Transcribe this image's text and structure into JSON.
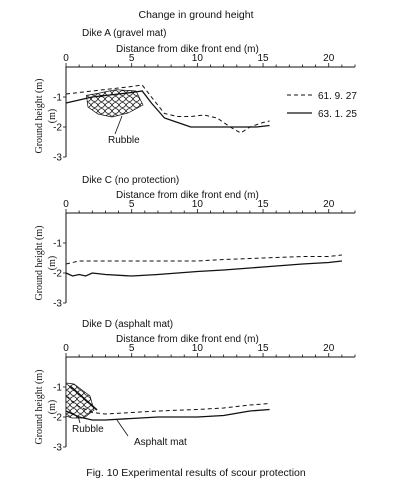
{
  "chart_data": {
    "title": "Change in ground height",
    "caption": "Fig. 10  Experimental results of scour protection",
    "panels": [
      {
        "type": "line",
        "name": "Dike A (gravel mat)",
        "xlabel": "Distance from dike front end (m)",
        "ylabel": "Ground height (m)",
        "xlim": [
          0,
          22
        ],
        "ylim": [
          -3,
          0
        ],
        "x_ticks": [
          "0",
          "5",
          "10",
          "15",
          "20"
        ],
        "y_ticks": [
          "-1",
          "-2",
          "-3"
        ],
        "annotations": [
          "Rubble"
        ],
        "series": [
          {
            "name": "61. 9. 27",
            "style": "dashed",
            "x": [
              0,
              1,
              2,
              3,
              4,
              5,
              5.8,
              6.5,
              7.5,
              8.5,
              9.5,
              10.5,
              11.5,
              12.5,
              13.3,
              14,
              15,
              15.5
            ],
            "y": [
              -0.9,
              -0.85,
              -0.8,
              -0.75,
              -0.7,
              -0.65,
              -0.6,
              -1.0,
              -1.55,
              -1.65,
              -1.65,
              -1.6,
              -1.7,
              -2.0,
              -2.2,
              -2.0,
              -1.85,
              -1.8
            ]
          },
          {
            "name": "63. 1. 25",
            "style": "solid",
            "x": [
              0,
              1,
              2,
              3,
              4,
              5,
              5.8,
              6.5,
              7.5,
              8.5,
              9.5,
              10.5,
              11.5,
              12.5,
              13.5,
              14.5,
              15.5
            ],
            "y": [
              -1.2,
              -1.1,
              -1.0,
              -0.95,
              -0.9,
              -0.85,
              -0.8,
              -1.2,
              -1.7,
              -1.85,
              -2.0,
              -2.0,
              -2.0,
              -2.0,
              -2.0,
              -2.0,
              -1.95
            ]
          }
        ]
      },
      {
        "type": "line",
        "name": "Dike C (no protection)",
        "xlabel": "Distance from dike front end (m)",
        "ylabel": "Ground height (m)",
        "xlim": [
          0,
          22
        ],
        "ylim": [
          -3,
          0
        ],
        "x_ticks": [
          "0",
          "5",
          "10",
          "15",
          "20"
        ],
        "y_ticks": [
          "-1",
          "-2",
          "-3"
        ],
        "annotations": [],
        "series": [
          {
            "name": "61. 9. 27",
            "style": "dashed",
            "x": [
              0,
              0.5,
              1,
              2,
              3,
              5,
              8,
              10,
              12,
              15,
              18,
              20,
              21
            ],
            "y": [
              -1.7,
              -1.65,
              -1.6,
              -1.6,
              -1.6,
              -1.6,
              -1.6,
              -1.6,
              -1.55,
              -1.5,
              -1.45,
              -1.45,
              -1.4
            ]
          },
          {
            "name": "63. 1. 25",
            "style": "solid",
            "x": [
              0,
              0.5,
              1,
              1.5,
              2,
              3,
              5,
              7,
              10,
              12,
              15,
              18,
              20,
              21
            ],
            "y": [
              -2.0,
              -2.1,
              -2.05,
              -2.1,
              -2.0,
              -2.05,
              -2.1,
              -2.05,
              -1.95,
              -1.9,
              -1.8,
              -1.7,
              -1.65,
              -1.6
            ]
          }
        ]
      },
      {
        "type": "line",
        "name": "Dike D (asphalt mat)",
        "xlabel": "Distance from dike front end (m)",
        "ylabel": "Ground height (m)",
        "xlim": [
          0,
          22
        ],
        "ylim": [
          -3,
          0
        ],
        "x_ticks": [
          "0",
          "5",
          "10",
          "15",
          "20"
        ],
        "y_ticks": [
          "-1",
          "-2",
          "-3"
        ],
        "annotations": [
          "Rubble",
          "Asphalt mat"
        ],
        "series": [
          {
            "name": "61. 9. 27",
            "style": "dashed",
            "x": [
              0,
              0.5,
              1,
              2,
              3,
              5,
              7,
              10,
              12,
              14,
              15.5
            ],
            "y": [
              -1.3,
              -1.5,
              -1.65,
              -1.85,
              -1.9,
              -1.85,
              -1.8,
              -1.75,
              -1.7,
              -1.6,
              -1.55
            ]
          },
          {
            "name": "63. 1. 25",
            "style": "solid",
            "x": [
              0,
              0.5,
              1,
              2,
              3,
              5,
              7,
              10,
              12,
              14,
              15.5
            ],
            "y": [
              -1.8,
              -1.9,
              -2.0,
              -2.1,
              -2.1,
              -2.05,
              -2.0,
              -2.0,
              -1.95,
              -1.8,
              -1.75
            ]
          }
        ]
      }
    ]
  }
}
